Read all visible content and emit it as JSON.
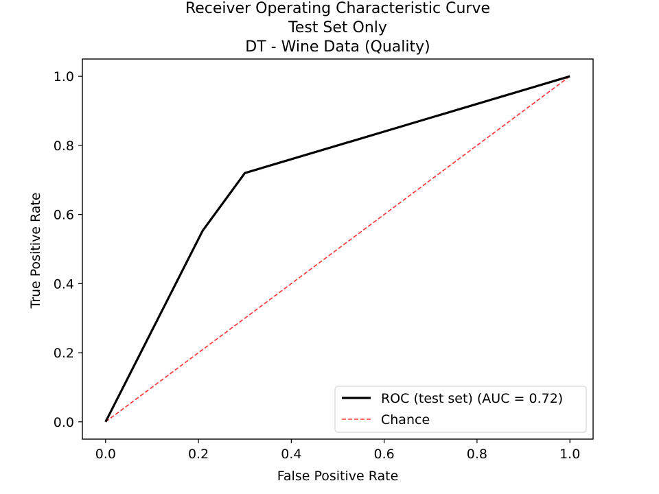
{
  "chart_data": {
    "type": "line",
    "title": [
      "Receiver Operating Characteristic Curve",
      "Test Set Only",
      "DT - Wine Data (Quality)"
    ],
    "xlabel": "False Positive Rate",
    "ylabel": "True Positive Rate",
    "xlim": [
      -0.05,
      1.05
    ],
    "ylim": [
      -0.05,
      1.05
    ],
    "x_ticks": [
      0.0,
      0.2,
      0.4,
      0.6,
      0.8,
      1.0
    ],
    "y_ticks": [
      0.0,
      0.2,
      0.4,
      0.6,
      0.8,
      1.0
    ],
    "x_tick_labels": [
      "0.0",
      "0.2",
      "0.4",
      "0.6",
      "0.8",
      "1.0"
    ],
    "y_tick_labels": [
      "0.0",
      "0.2",
      "0.4",
      "0.6",
      "0.8",
      "1.0"
    ],
    "grid": false,
    "legend_position": "lower-right",
    "series": [
      {
        "name": "ROC (test set) (AUC = 0.72)",
        "color": "#000000",
        "style": "solid",
        "x": [
          0.0,
          0.209,
          0.3,
          1.0
        ],
        "y": [
          0.0,
          0.553,
          0.72,
          1.0
        ]
      },
      {
        "name": "Chance",
        "color": "#ff3333",
        "style": "dashed",
        "x": [
          0.0,
          1.0
        ],
        "y": [
          0.0,
          1.0
        ]
      }
    ]
  }
}
